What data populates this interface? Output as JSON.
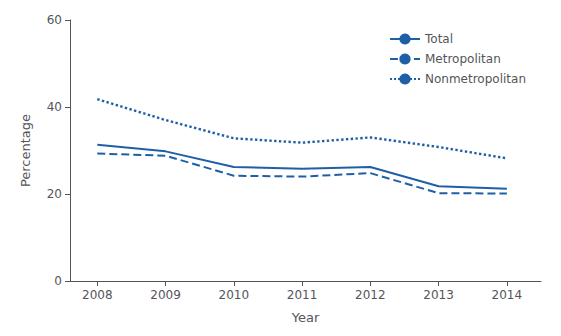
{
  "chart_data": {
    "type": "line",
    "x": [
      2008,
      2009,
      2010,
      2011,
      2012,
      2013,
      2014
    ],
    "xlim": [
      2007.6,
      2014.5
    ],
    "xticks": [
      2008,
      2009,
      2010,
      2011,
      2012,
      2013,
      2014
    ],
    "ylim": [
      0,
      60
    ],
    "yticks": [
      0,
      20,
      40,
      60
    ],
    "xlabel": "Year",
    "ylabel": "Percentage",
    "grid": false,
    "legend": "upper right",
    "color": "#1f5fa6",
    "series": [
      {
        "name": "Total",
        "values": [
          31.3,
          29.8,
          26.2,
          25.8,
          26.2,
          21.8,
          21.2
        ],
        "line_style": "solid"
      },
      {
        "name": "Metropolitan",
        "values": [
          29.3,
          28.8,
          24.2,
          24.0,
          24.8,
          20.2,
          20.1
        ],
        "line_style": "dashed"
      },
      {
        "name": "Nonmetropolitan",
        "values": [
          41.8,
          37.0,
          32.8,
          31.8,
          33.0,
          30.8,
          28.2
        ],
        "line_style": "dotted"
      }
    ]
  }
}
